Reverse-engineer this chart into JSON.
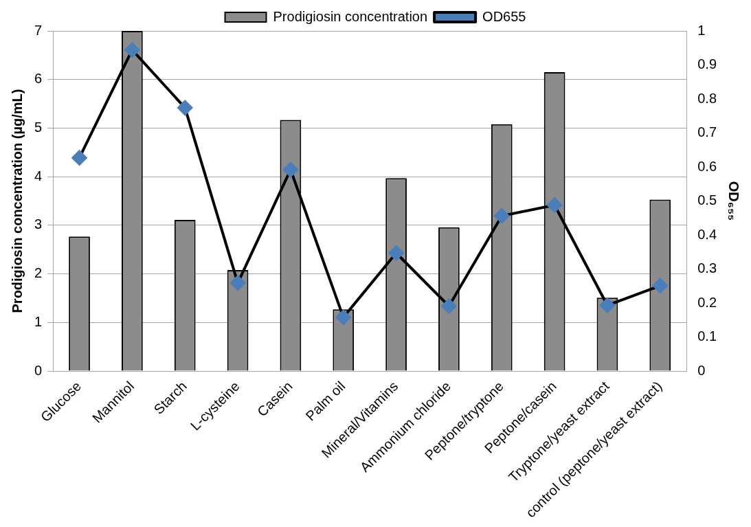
{
  "chart_data": {
    "type": "bar",
    "categories": [
      "Glucose",
      "Mannitol",
      "Starch",
      "L-cysteine",
      "Casein",
      "Palm oil",
      "Mineral/Vitamins",
      "Ammonium chloride",
      "Peptone/tryptone",
      "Peptone/casein",
      "Tryptone/yeast extract",
      "control (peptone/yeast extract)"
    ],
    "ylabel": "Prodigiosin concentration (µg/mL)",
    "y2label": "OD₆₅₅",
    "series": [
      {
        "name": "Prodigiosin concentration",
        "color": "#8c8c8c",
        "values": [
          2.77,
          7.0,
          3.11,
          2.08,
          5.17,
          1.27,
          3.97,
          2.96,
          5.08,
          6.15,
          1.51,
          3.53
        ]
      },
      {
        "name": "OD655",
        "type": "line",
        "axis": "y2",
        "color": "#000000",
        "marker": "diamond",
        "values": [
          0.627,
          0.944,
          0.774,
          0.259,
          0.592,
          0.158,
          0.347,
          0.191,
          0.456,
          0.488,
          0.193,
          0.251
        ]
      }
    ],
    "ylim": [
      0,
      7
    ],
    "yticks": [
      0,
      1,
      2,
      3,
      4,
      5,
      6,
      7
    ],
    "y2lim": [
      0,
      1
    ],
    "y2ticks": [
      0,
      0.1,
      0.2,
      0.3,
      0.4,
      0.5,
      0.6,
      0.7,
      0.8,
      0.9,
      1
    ],
    "grid": "y",
    "legend": "top"
  }
}
